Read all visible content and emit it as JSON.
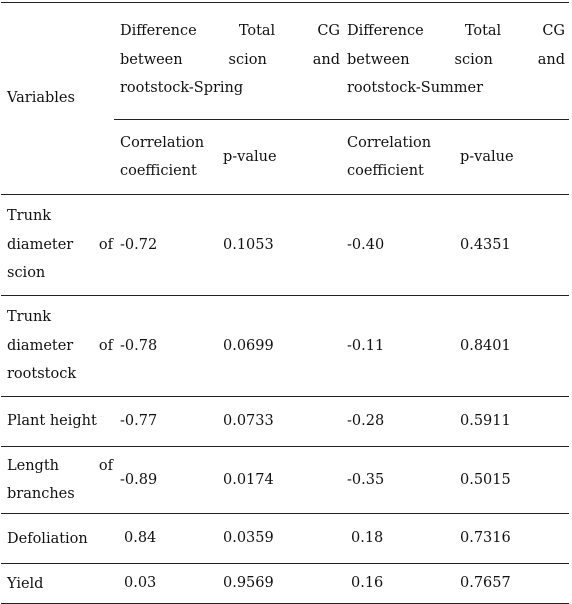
{
  "table": {
    "variables_label": "Variables",
    "groups": [
      {
        "title_line1": [
          "Difference",
          "Total",
          "CG"
        ],
        "title_line2": [
          "between",
          "scion",
          "and"
        ],
        "title_line3": "rootstock-Spring"
      },
      {
        "title_line1": [
          "Difference",
          "Total",
          "CG"
        ],
        "title_line2": [
          "between",
          "scion",
          "and"
        ],
        "title_line3": "rootstock-Summer"
      }
    ],
    "subheaders": {
      "corr_line1": "Correlation",
      "corr_line2": "coefficient",
      "pvalue": "p-value"
    },
    "rows": [
      {
        "var_lines": [
          [
            "Trunk"
          ],
          [
            "diameter",
            "of"
          ],
          [
            "scion"
          ]
        ],
        "spring_corr": "-0.72",
        "spring_p": "0.1053",
        "summer_corr": "-0.40",
        "summer_p": "0.4351",
        "align": "left"
      },
      {
        "var_lines": [
          [
            "Trunk"
          ],
          [
            "diameter",
            "of"
          ],
          [
            "rootstock"
          ]
        ],
        "spring_corr": "-0.78",
        "spring_p": "0.0699",
        "summer_corr": "-0.11",
        "summer_p": "0.8401",
        "align": "left"
      },
      {
        "var_lines": [
          [
            "Plant height"
          ]
        ],
        "spring_corr": "-0.77",
        "spring_p": "0.0733",
        "summer_corr": "-0.28",
        "summer_p": "0.5911",
        "align": "left"
      },
      {
        "var_lines": [
          [
            "Length",
            "of"
          ],
          [
            "branches"
          ]
        ],
        "spring_corr": "-0.89",
        "spring_p": "0.0174",
        "summer_corr": "-0.35",
        "summer_p": "0.5015",
        "align": "left"
      },
      {
        "var_lines": [
          [
            "Defoliation"
          ]
        ],
        "spring_corr": "0.84",
        "spring_p": "0.0359",
        "summer_corr": "0.18",
        "summer_p": "0.7316",
        "align": "center"
      },
      {
        "var_lines": [
          [
            "Yield"
          ]
        ],
        "spring_corr": "0.03",
        "spring_p": "0.9569",
        "summer_corr": "0.16",
        "summer_p": "0.7657",
        "align": "center"
      }
    ]
  }
}
